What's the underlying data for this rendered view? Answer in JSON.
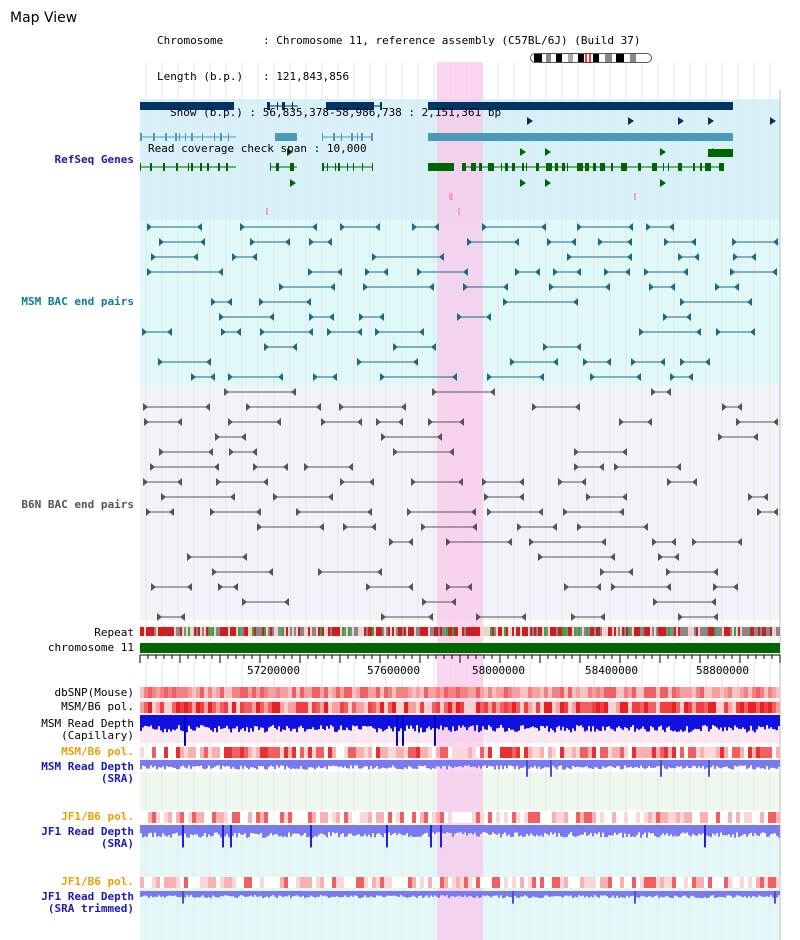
{
  "app_title": "Map View",
  "info": {
    "chromosome_label": "Chromosome",
    "chromosome_value": "Chromosome 11, reference assembly (C57BL/6J) (Build 37)",
    "length_label": "Length (b.p.)",
    "length_value": "121,843,856",
    "show_label": "Show (b.p.)",
    "show_value": "56,835,378-58,986,738 : 2,151,361 bp",
    "coverage_label": "Read coverage check span",
    "coverage_value": "10,000"
  },
  "tracks": {
    "refseq": "RefSeq Genes",
    "msm_bac": "MSM BAC end pairs",
    "b6n_bac": "B6N BAC end pairs",
    "repeat": "Repeat",
    "chromosome": "chromosome 11",
    "dbsnp": "dbSNP(Mouse)",
    "msm_b6_pol": "MSM/B6 pol.",
    "msm_depth_cap_1": "MSM Read Depth",
    "msm_depth_cap_2": "(Capillary)",
    "msm_b6_pol_2": "MSM/B6 pol.",
    "msm_depth_sra_1": "MSM Read Depth",
    "msm_depth_sra_2": "(SRA)",
    "jf1_b6_pol": "JF1/B6 pol.",
    "jf1_depth_sra_1": "JF1 Read Depth",
    "jf1_depth_sra_2": "(SRA)",
    "jf1_b6_pol_2": "JF1/B6 pol.",
    "jf1_depth_trim_1": "JF1 Read Depth",
    "jf1_depth_trim_2": "(SRA trimmed)"
  },
  "axis_ticks": [
    "57200000",
    "57600000",
    "58000000",
    "58400000",
    "58800000"
  ],
  "colors": {
    "refseq_bg": "#d8f0f8",
    "msm_bg": "#e0f8f8",
    "b6n_bg": "#f2f2f8",
    "highlight": "#f8c8ec",
    "gene_navy": "#003366",
    "gene_teal": "#4a9ab8",
    "gene_green": "#006600",
    "msm_line": "#1a6a8a",
    "b6n_line": "#555555",
    "chromosome_bar": "#006600",
    "depth_blue": "#1010e0",
    "depth_periwinkle": "#7a7af0",
    "pol_red": "#f04040"
  }
}
